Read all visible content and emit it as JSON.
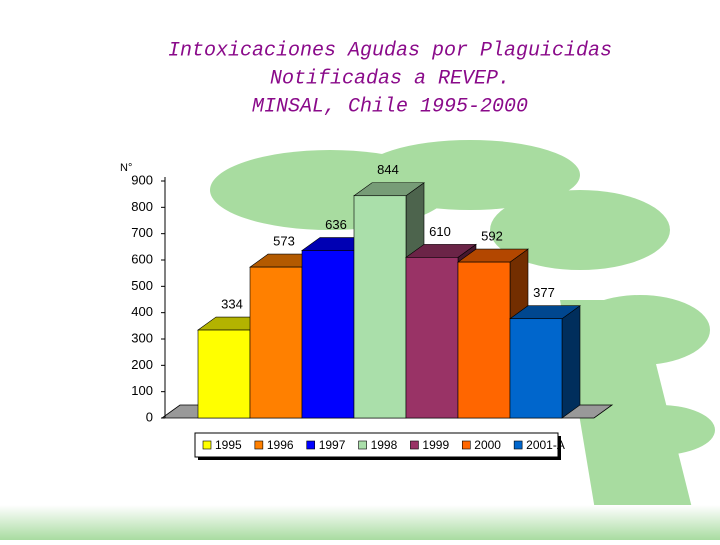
{
  "chart_data": {
    "type": "bar3d",
    "title": [
      "Intoxicaciones Agudas por Plaguicidas",
      "Notificadas a REVEP.",
      "MINSAL, Chile 1995-2000"
    ],
    "y_label": "N°",
    "categories": [
      "1995",
      "1996",
      "1997",
      "1998",
      "1999",
      "2000",
      "2001-A"
    ],
    "values": [
      334,
      573,
      636,
      844,
      610,
      592,
      377
    ],
    "colors": [
      "#ffff00",
      "#ff8000",
      "#0000ff",
      "#aadfaa",
      "#993366",
      "#ff6600",
      "#0066cc"
    ],
    "ylim": [
      0,
      900
    ],
    "yticks": [
      0,
      100,
      200,
      300,
      400,
      500,
      600,
      700,
      800,
      900
    ]
  }
}
